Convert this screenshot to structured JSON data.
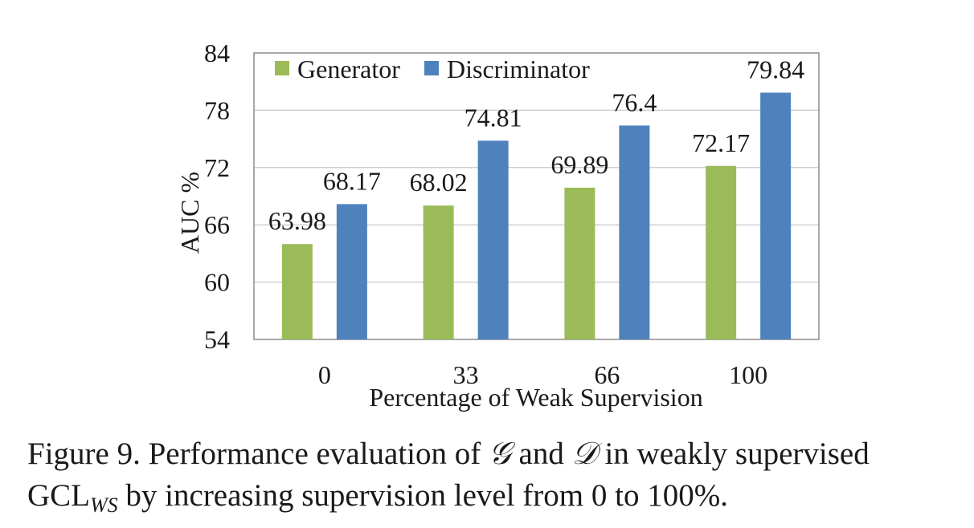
{
  "chart_data": {
    "type": "bar",
    "categories": [
      "0",
      "33",
      "66",
      "100"
    ],
    "series": [
      {
        "name": "Generator",
        "values": [
          63.98,
          68.02,
          69.89,
          72.17
        ],
        "color": "#9bbb59"
      },
      {
        "name": "Discriminator",
        "values": [
          68.17,
          74.81,
          76.4,
          79.84
        ],
        "color": "#4f81bd"
      }
    ],
    "value_labels": {
      "Generator": [
        "63.98",
        "68.02",
        "69.89",
        "72.17"
      ],
      "Discriminator": [
        "68.17",
        "74.81",
        "76.4",
        "79.84"
      ]
    },
    "xlabel": "Percentage of Weak Supervision",
    "ylabel": "AUC %",
    "ylim": [
      54,
      84
    ],
    "yticks": [
      54,
      60,
      66,
      72,
      78,
      84
    ],
    "grid": "horizontal",
    "legend_position": "top-left"
  },
  "caption": {
    "lead": "Figure 9. Performance evaluation of ",
    "sym_g": "𝒢",
    "and": " and ",
    "sym_d": "𝒟",
    "mid": " in weakly supervised GCL",
    "subscript": "WS",
    "tail": " by increasing supervision level from 0 to 100%."
  }
}
